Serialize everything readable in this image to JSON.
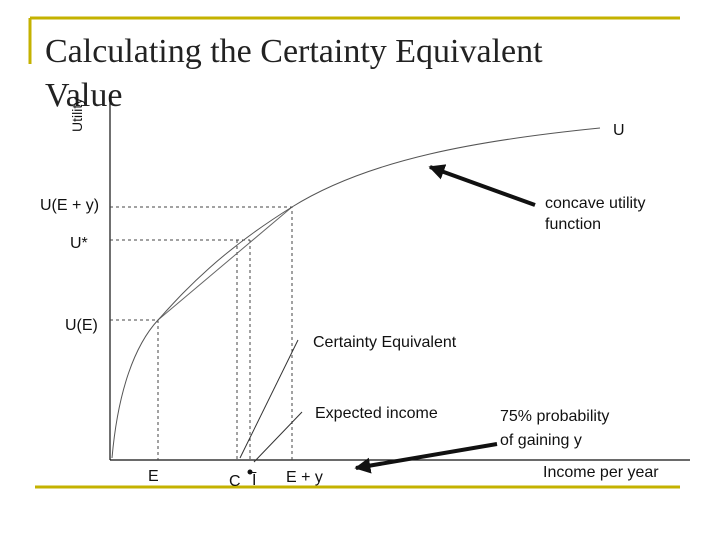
{
  "header": {
    "title_lines": [
      "Calculating the Certainty Equivalent",
      "Value"
    ]
  },
  "axes": {
    "y_label": "Utility",
    "x_label": "Income per year"
  },
  "curve_labels": {
    "curve": "U",
    "concave": [
      "concave utility",
      "function"
    ]
  },
  "y_labels": {
    "upper": "U(E + y)",
    "star": "U*",
    "lower": "U(E)"
  },
  "x_labels": {
    "e": "E",
    "c": "C",
    "i": "Ī",
    "ey": "E + y"
  },
  "annotations": {
    "certainty": "Certainty Equivalent",
    "expected": "Expected income",
    "probability": [
      "75% probability",
      "of gaining y"
    ]
  }
}
